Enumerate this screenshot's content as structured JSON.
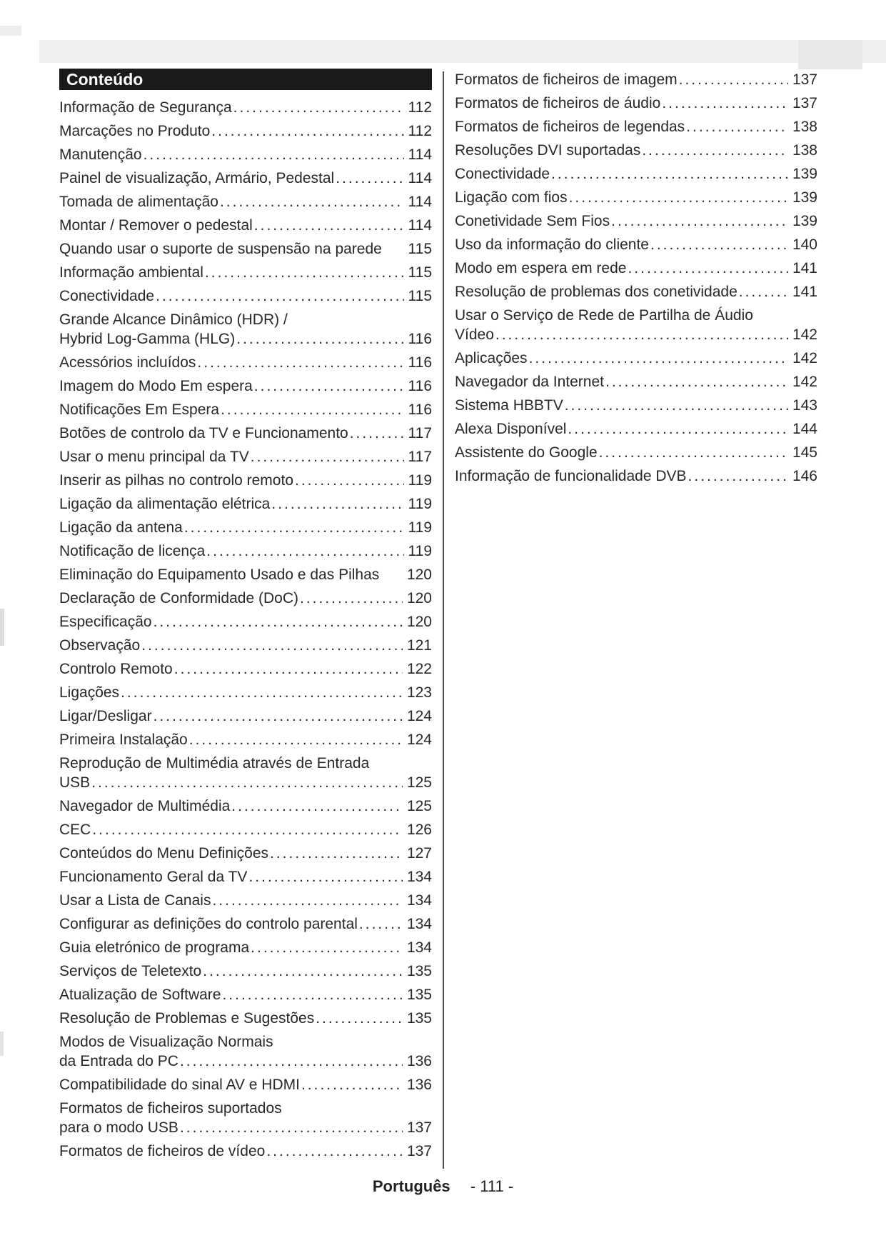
{
  "header": {
    "title": "Conteúdo"
  },
  "toc": {
    "left": [
      {
        "t": "Informação de Segurança",
        "p": "112"
      },
      {
        "t": "Marcações no Produto",
        "p": "112"
      },
      {
        "t": "Manutenção",
        "p": "114"
      },
      {
        "t": "Painel de visualização, Armário, Pedestal",
        "p": "114"
      },
      {
        "t": "Tomada de alimentação",
        "p": "114"
      },
      {
        "t": "Montar / Remover o pedestal",
        "p": "114"
      },
      {
        "t": "Quando usar o suporte de suspensão na parede",
        "p": "115",
        "nodots": true
      },
      {
        "t": "Informação ambiental",
        "p": "115"
      },
      {
        "t": "Conectividade",
        "p": "115"
      },
      {
        "pre": "Grande Alcance Dinâmico (HDR) /",
        "t": "Hybrid Log-Gamma (HLG)",
        "p": "116"
      },
      {
        "t": "Acessórios incluídos",
        "p": "116"
      },
      {
        "t": "Imagem do Modo Em espera",
        "p": "116"
      },
      {
        "t": "Notificações Em Espera",
        "p": "116"
      },
      {
        "t": "Botões de controlo da TV e Funcionamento",
        "p": "117"
      },
      {
        "t": "Usar o menu principal da TV",
        "p": "117"
      },
      {
        "t": "Inserir as pilhas no controlo remoto",
        "p": "119"
      },
      {
        "t": "Ligação da alimentação elétrica",
        "p": "119"
      },
      {
        "t": "Ligação da antena",
        "p": "119"
      },
      {
        "t": "Notificação de licença",
        "p": "119"
      },
      {
        "t": "Eliminação do Equipamento Usado e das Pilhas",
        "p": "120",
        "nodots": true
      },
      {
        "t": "Declaração de Conformidade (DoC)",
        "p": "120"
      },
      {
        "t": "Especificação",
        "p": "120"
      },
      {
        "t": "Observação",
        "p": "121"
      },
      {
        "t": "Controlo Remoto",
        "p": "122"
      },
      {
        "t": "Ligações",
        "p": "123"
      },
      {
        "t": "Ligar/Desligar",
        "p": "124"
      },
      {
        "t": "Primeira Instalação",
        "p": "124"
      },
      {
        "pre": "Reprodução de Multimédia através de Entrada",
        "t": "USB",
        "p": "125"
      },
      {
        "t": "Navegador de Multimédia",
        "p": "125"
      },
      {
        "t": "CEC",
        "p": "126"
      },
      {
        "t": "Conteúdos do Menu Definições",
        "p": "127"
      },
      {
        "t": "Funcionamento Geral da TV",
        "p": "134"
      },
      {
        "t": "Usar a Lista de Canais",
        "p": "134"
      },
      {
        "t": "Configurar as definições do controlo parental",
        "p": "134"
      },
      {
        "t": "Guia eletrónico de programa",
        "p": "134"
      },
      {
        "t": "Serviços de Teletexto",
        "p": "135"
      },
      {
        "t": "Atualização de Software",
        "p": "135"
      },
      {
        "t": "Resolução de Problemas e Sugestões",
        "p": "135"
      },
      {
        "pre": "Modos de Visualização Normais",
        "t": "da Entrada do PC",
        "p": "136"
      },
      {
        "t": "Compatibilidade do sinal AV e HDMI",
        "p": "136"
      },
      {
        "pre": "Formatos de ficheiros suportados",
        "t": "para o modo USB",
        "p": "137"
      },
      {
        "t": "Formatos de ficheiros de vídeo",
        "p": "137"
      }
    ],
    "right": [
      {
        "t": "Formatos de ficheiros de imagem",
        "p": "137"
      },
      {
        "t": "Formatos de ficheiros de áudio",
        "p": "137"
      },
      {
        "t": "Formatos de ficheiros de legendas",
        "p": "138"
      },
      {
        "t": "Resoluções DVI suportadas",
        "p": "138"
      },
      {
        "t": "Conectividade",
        "p": "139"
      },
      {
        "t": "Ligação com fios",
        "p": "139"
      },
      {
        "t": "Conetividade Sem Fios",
        "p": "139"
      },
      {
        "t": "Uso da informação do cliente",
        "p": "140"
      },
      {
        "t": "Modo em espera em rede",
        "p": "141"
      },
      {
        "t": "Resolução de problemas dos conetividade",
        "p": "141"
      },
      {
        "pre": "Usar o Serviço de Rede de Partilha de Áudio",
        "t": "Vídeo",
        "p": "142"
      },
      {
        "t": "Aplicações",
        "p": "142"
      },
      {
        "t": "Navegador da Internet",
        "p": "142"
      },
      {
        "t": "Sistema HBBTV",
        "p": "143"
      },
      {
        "t": "Alexa Disponível",
        "p": "144"
      },
      {
        "t": "Assistente do Google",
        "p": "145"
      },
      {
        "t": "Informação de funcionalidade DVB",
        "p": "146"
      }
    ]
  },
  "footer": {
    "language": "Português",
    "page_label": "- 111 -"
  }
}
